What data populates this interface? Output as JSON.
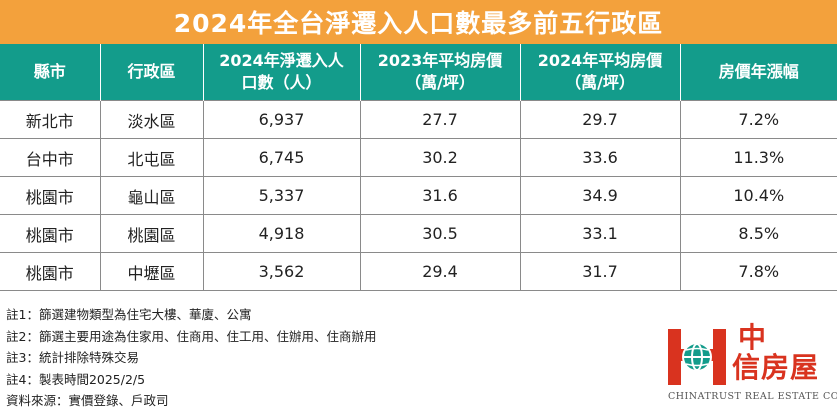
{
  "title": "2024年全台淨遷入人口數最多前五行政區",
  "columns": [
    {
      "line1": "縣市",
      "line2": ""
    },
    {
      "line1": "行政區",
      "line2": ""
    },
    {
      "line1": "2024年淨遷入人",
      "line2": "口數（人）"
    },
    {
      "line1": "2023年平均房價",
      "line2": "（萬/坪）"
    },
    {
      "line1": "2024年平均房價",
      "line2": "（萬/坪）"
    },
    {
      "line1": "房價年漲幅",
      "line2": ""
    }
  ],
  "rows": [
    [
      "新北市",
      "淡水區",
      "6,937",
      "27.7",
      "29.7",
      "7.2%"
    ],
    [
      "台中市",
      "北屯區",
      "6,745",
      "30.2",
      "33.6",
      "11.3%"
    ],
    [
      "桃園市",
      "龜山區",
      "5,337",
      "31.6",
      "34.9",
      "10.4%"
    ],
    [
      "桃園市",
      "桃園區",
      "4,918",
      "30.5",
      "33.1",
      "8.5%"
    ],
    [
      "桃園市",
      "中壢區",
      "3,562",
      "29.4",
      "31.7",
      "7.8%"
    ]
  ],
  "notes": [
    "註1：篩選建物類型為住宅大樓、華廈、公寓",
    "註2：篩選主要用途為住家用、住商用、住工用、住辦用、住商辦用",
    "註3：統計排除特殊交易",
    "註4：製表時間2025/2/5",
    "資料來源：實價登錄、戶政司"
  ],
  "logo": {
    "name_line1": "中",
    "name_line2": "信房屋",
    "english": "CHINATRUST REAL ESTATE CO."
  },
  "colors": {
    "title_bg": "#f3a13c",
    "header_bg": "#139c8b",
    "brand_red": "#d9331f",
    "brand_teal": "#139c8b"
  }
}
